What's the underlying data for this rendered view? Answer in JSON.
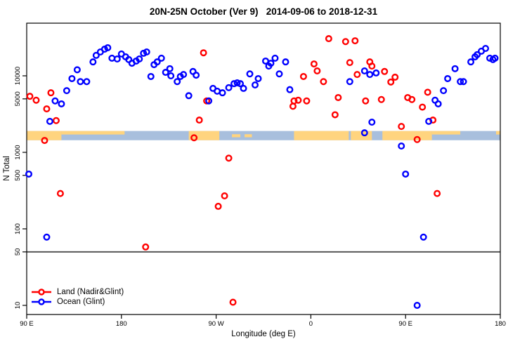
{
  "title": "20N-25N October (Ver 9)   2014-09-06 to 2018-12-31",
  "chart_data": {
    "type": "scatter",
    "title": "20N-25N October (Ver 9)   2014-09-06 to 2018-12-31",
    "xlabel": "Longitude (deg E)",
    "ylabel": "N Total",
    "x_axis": {
      "range": [
        90,
        540
      ],
      "ticks": [
        {
          "v": 90,
          "label": "90 E"
        },
        {
          "v": 180,
          "label": "180"
        },
        {
          "v": 270,
          "label": "90 W"
        },
        {
          "v": 360,
          "label": "0"
        },
        {
          "v": 450,
          "label": "90 E"
        },
        {
          "v": 540,
          "label": "180"
        }
      ]
    },
    "y_axis": {
      "scale": "log",
      "ticks": [
        {
          "v": 10000,
          "label": "10000"
        },
        {
          "v": 5000,
          "label": "5000"
        },
        {
          "v": 1000,
          "label": "1000"
        },
        {
          "v": 500,
          "label": "500"
        },
        {
          "v": 100,
          "label": "100"
        },
        {
          "v": 50,
          "label": "50"
        },
        {
          "v": 10,
          "label": "10"
        }
      ]
    },
    "reference_line": {
      "n": 50,
      "color": "#4d4d4d"
    },
    "map_band": {
      "ocean_color": "#a8bfdd",
      "land_color": "#ffd47f",
      "n_top": 1900,
      "n_bottom": 1440,
      "land_patches": [
        {
          "from": 90,
          "to": 123,
          "part": "full"
        },
        {
          "from": 123,
          "to": 183,
          "part": "top"
        },
        {
          "from": 244,
          "to": 273,
          "part": "full"
        },
        {
          "from": 285,
          "to": 293,
          "part": "mid"
        },
        {
          "from": 297,
          "to": 304,
          "part": "mid"
        },
        {
          "from": 344,
          "to": 396,
          "part": "full"
        },
        {
          "from": 398,
          "to": 418,
          "part": "full"
        },
        {
          "from": 428,
          "to": 475,
          "part": "full"
        },
        {
          "from": 475,
          "to": 502,
          "part": "top"
        },
        {
          "from": 536,
          "to": 540,
          "part": "top"
        }
      ]
    },
    "series": [
      {
        "name": "Land (Nadir&Glint)",
        "color": "#ff0000",
        "points": [
          [
            93,
            5400
          ],
          [
            99,
            4800
          ],
          [
            113,
            6000
          ],
          [
            109,
            3700
          ],
          [
            118,
            2600
          ],
          [
            107,
            1430
          ],
          [
            258,
            20000
          ],
          [
            261,
            4700
          ],
          [
            254,
            2640
          ],
          [
            249,
            1550
          ],
          [
            343,
            4000
          ],
          [
            344,
            4700
          ],
          [
            348,
            4800
          ],
          [
            356,
            4700
          ],
          [
            353,
            9800
          ],
          [
            363,
            14300
          ],
          [
            366,
            11600
          ],
          [
            372,
            8400
          ],
          [
            377,
            30600
          ],
          [
            393,
            28000
          ],
          [
            402,
            28700
          ],
          [
            383,
            3100
          ],
          [
            386,
            5200
          ],
          [
            397,
            14900
          ],
          [
            404,
            10400
          ],
          [
            412,
            4700
          ],
          [
            416,
            15200
          ],
          [
            418,
            13400
          ],
          [
            427,
            4900
          ],
          [
            430,
            11400
          ],
          [
            436,
            8300
          ],
          [
            440,
            9600
          ],
          [
            446,
            2180
          ],
          [
            452,
            5200
          ],
          [
            456,
            4900
          ],
          [
            461,
            1470
          ],
          [
            466,
            3900
          ],
          [
            471,
            6100
          ],
          [
            476,
            2640
          ],
          [
            122,
            290
          ],
          [
            203,
            58
          ],
          [
            282,
            840
          ],
          [
            278,
            270
          ],
          [
            272,
            197
          ],
          [
            286,
            11
          ],
          [
            480,
            290
          ]
        ]
      },
      {
        "name": "Ocean (Glint)",
        "color": "#0000ff",
        "points": [
          [
            112,
            2540
          ],
          [
            117,
            4700
          ],
          [
            123,
            4300
          ],
          [
            128,
            6400
          ],
          [
            133,
            9200
          ],
          [
            138,
            12000
          ],
          [
            141,
            8400
          ],
          [
            147,
            8400
          ],
          [
            153,
            15200
          ],
          [
            156,
            18500
          ],
          [
            160,
            20500
          ],
          [
            164,
            22300
          ],
          [
            167,
            23300
          ],
          [
            171,
            17000
          ],
          [
            176,
            16600
          ],
          [
            180,
            19300
          ],
          [
            184,
            17700
          ],
          [
            187,
            16300
          ],
          [
            190,
            14600
          ],
          [
            194,
            15600
          ],
          [
            197,
            16600
          ],
          [
            201,
            19700
          ],
          [
            204,
            20500
          ],
          [
            208,
            9800
          ],
          [
            211,
            14000
          ],
          [
            214,
            15200
          ],
          [
            218,
            17000
          ],
          [
            222,
            11100
          ],
          [
            226,
            12400
          ],
          [
            227,
            10000
          ],
          [
            233,
            8400
          ],
          [
            236,
            9800
          ],
          [
            239,
            10400
          ],
          [
            244,
            5500
          ],
          [
            248,
            11400
          ],
          [
            251,
            10200
          ],
          [
            263,
            4700
          ],
          [
            267,
            6850
          ],
          [
            271,
            6300
          ],
          [
            276,
            6000
          ],
          [
            282,
            7000
          ],
          [
            287,
            7900
          ],
          [
            290,
            8100
          ],
          [
            293,
            7900
          ],
          [
            296,
            6850
          ],
          [
            302,
            10600
          ],
          [
            307,
            7600
          ],
          [
            310,
            9200
          ],
          [
            317,
            15600
          ],
          [
            320,
            13400
          ],
          [
            322,
            14600
          ],
          [
            326,
            17000
          ],
          [
            330,
            10600
          ],
          [
            336,
            15200
          ],
          [
            340,
            6600
          ],
          [
            397,
            8400
          ],
          [
            411,
            11600
          ],
          [
            416,
            10400
          ],
          [
            422,
            10900
          ],
          [
            411,
            1800
          ],
          [
            418,
            2480
          ],
          [
            446,
            1210
          ],
          [
            450,
            520
          ],
          [
            461,
            10
          ],
          [
            467,
            78
          ],
          [
            472,
            2540
          ],
          [
            478,
            4800
          ],
          [
            481,
            4300
          ],
          [
            486,
            6400
          ],
          [
            490,
            9200
          ],
          [
            497,
            12400
          ],
          [
            502,
            8400
          ],
          [
            505,
            8400
          ],
          [
            512,
            15200
          ],
          [
            516,
            17700
          ],
          [
            518,
            18900
          ],
          [
            522,
            21000
          ],
          [
            526,
            22800
          ],
          [
            530,
            17000
          ],
          [
            533,
            16300
          ],
          [
            535,
            17000
          ],
          [
            92,
            520
          ],
          [
            109,
            78
          ]
        ]
      }
    ],
    "legend_position": "bottom-left",
    "grid": false
  },
  "legend": {
    "items": [
      {
        "label": "Land (Nadir&Glint)",
        "color": "#ff0000"
      },
      {
        "label": "Ocean (Glint)",
        "color": "#0000ff"
      }
    ]
  }
}
